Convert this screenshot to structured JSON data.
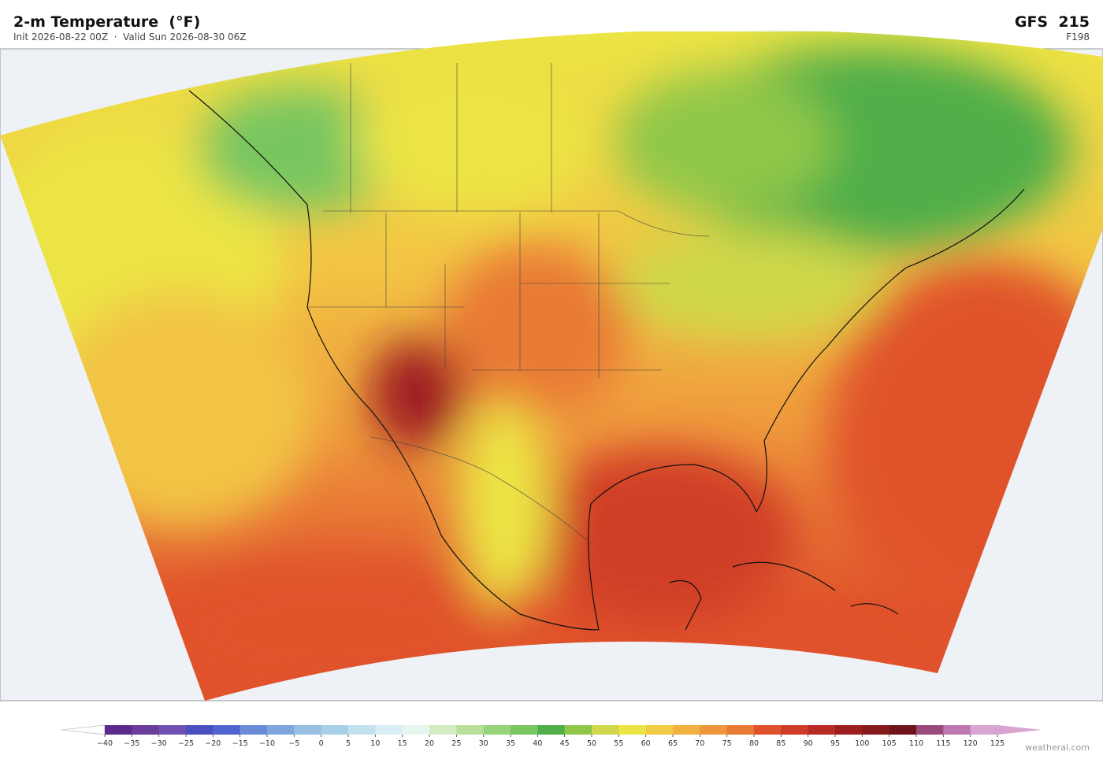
{
  "header": {
    "title": "2-m Temperature  (°F)",
    "subtitle": "Init 2026-08-22 00Z  ·  Valid Sun 2026-08-30 06Z",
    "model": "GFS  215",
    "forecast_hour": "F198"
  },
  "colorbar": {
    "ticks": [
      {
        "value": -40,
        "label": "−40"
      },
      {
        "value": -35,
        "label": "−35"
      },
      {
        "value": -30,
        "label": "−30"
      },
      {
        "value": -25,
        "label": "−25"
      },
      {
        "value": -20,
        "label": "−20"
      },
      {
        "value": -15,
        "label": "−15"
      },
      {
        "value": -10,
        "label": "−10"
      },
      {
        "value": -5,
        "label": "−5"
      },
      0,
      5,
      10,
      15,
      20,
      25,
      30,
      35,
      40,
      45,
      50,
      55,
      60,
      65,
      70,
      75,
      80,
      85,
      90,
      95,
      100,
      105,
      110,
      115,
      120,
      125
    ],
    "colors": [
      "#5b2a8c",
      "#6a3d9a",
      "#7050b0",
      "#4b4fc0",
      "#4f64d0",
      "#6a8cd8",
      "#7fa6dc",
      "#96bfe2",
      "#a8cfe8",
      "#c2e2f0",
      "#d6eef4",
      "#e6f5ee",
      "#d4ecc4",
      "#b8e09a",
      "#98d47a",
      "#78c660",
      "#4fae4a",
      "#8fc74a",
      "#cfd84a",
      "#ece444",
      "#f2cc44",
      "#f2b040",
      "#ee963c",
      "#e97a34",
      "#e0522c",
      "#d03c28",
      "#b92a24",
      "#9e1e20",
      "#851a1c",
      "#6e141a",
      "#9a4a7a",
      "#c078b0",
      "#d8a4d0"
    ],
    "under_color": "#ffffff",
    "over_color": "#d8a4d0"
  },
  "credit": "weatherai.com"
}
